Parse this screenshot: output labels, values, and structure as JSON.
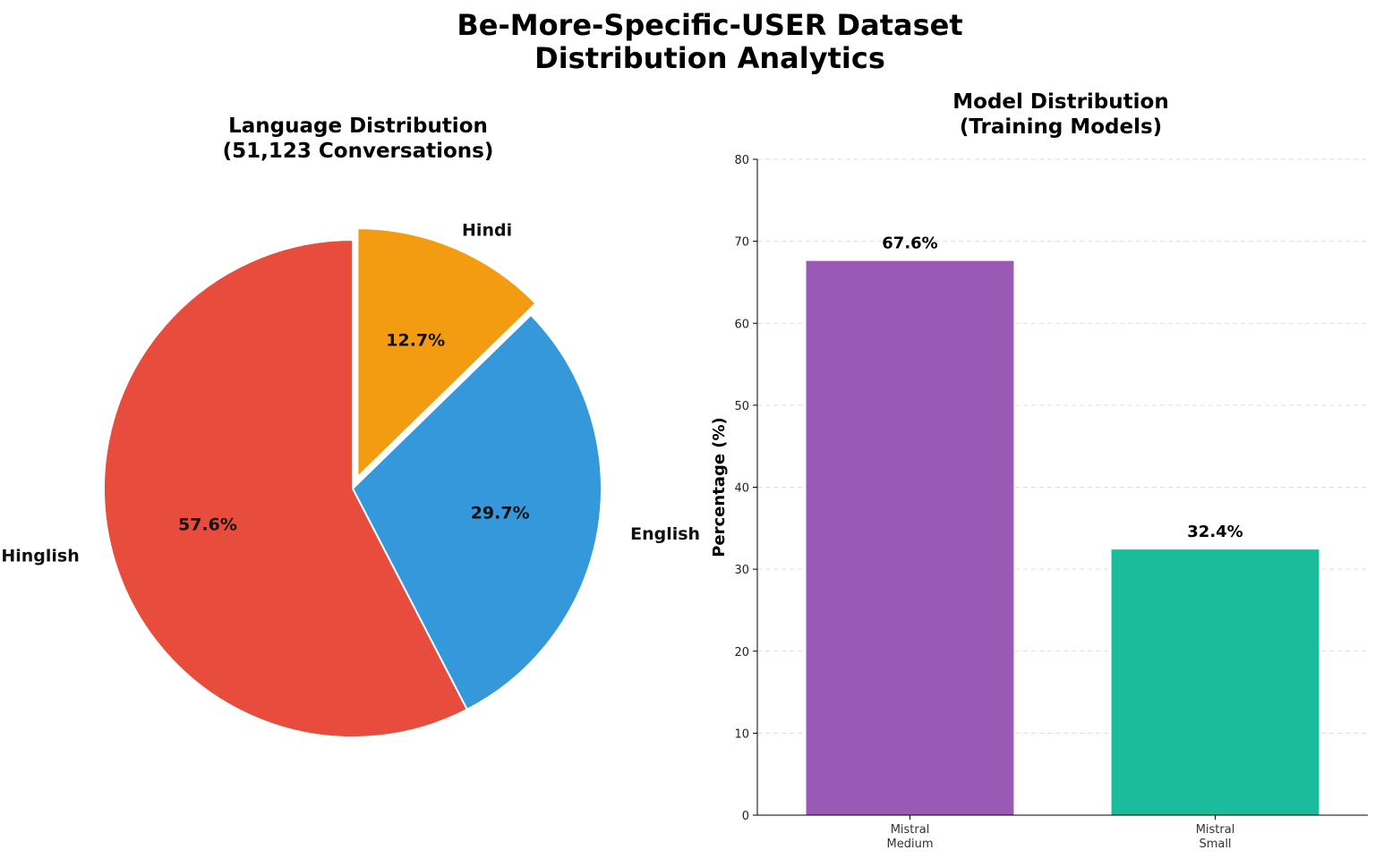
{
  "figure": {
    "title_line1": "Be-More-Specific-USER Dataset",
    "title_line2": "Distribution Analytics"
  },
  "chart_data": [
    {
      "type": "pie",
      "title_line1": "Language Distribution",
      "title_line2": "(51,123 Conversations)",
      "categories": [
        "Hindi",
        "English",
        "Hinglish"
      ],
      "values": [
        12.7,
        29.7,
        57.6
      ],
      "labels": [
        "12.7%",
        "29.7%",
        "57.6%"
      ],
      "colors": [
        "#f39c12",
        "#3498db",
        "#e74c3c"
      ],
      "exploded": [
        "Hindi"
      ],
      "start": "top",
      "direction": "clockwise"
    },
    {
      "type": "bar",
      "title_line1": "Model Distribution",
      "title_line2": "(Training Models)",
      "categories": [
        [
          "Mistral",
          "Medium"
        ],
        [
          "Mistral",
          "Small"
        ]
      ],
      "values": [
        67.6,
        32.4
      ],
      "labels": [
        "67.6%",
        "32.4%"
      ],
      "colors": [
        "#9b59b6",
        "#1abc9c"
      ],
      "ylabel": "Percentage (%)",
      "ylim": [
        0,
        80
      ],
      "yticks": [
        0,
        10,
        20,
        30,
        40,
        50,
        60,
        70,
        80
      ],
      "grid": "horizontal dashed"
    }
  ]
}
